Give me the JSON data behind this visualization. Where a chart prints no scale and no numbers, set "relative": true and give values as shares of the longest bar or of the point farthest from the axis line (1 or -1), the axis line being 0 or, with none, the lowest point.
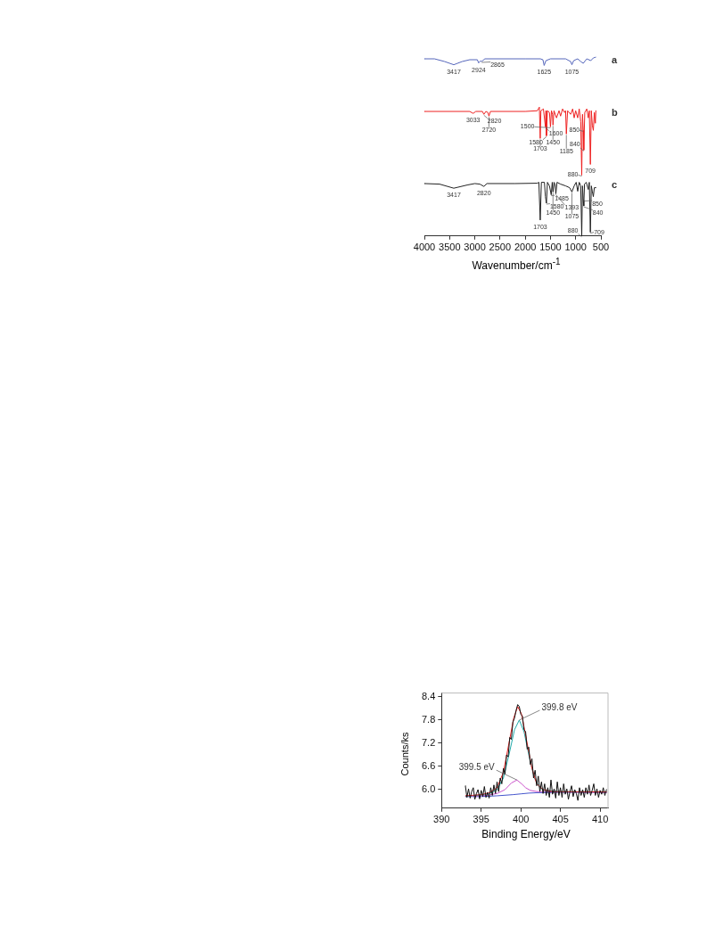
{
  "chart_data": [
    {
      "type": "line",
      "relative": true,
      "xlabel": "Wavenumber/cm$^{-1}$",
      "xlim": [
        4000,
        500
      ],
      "xticks": [
        4000,
        3500,
        3000,
        2500,
        2000,
        1500,
        1000,
        500
      ],
      "grid": false,
      "marker": "none",
      "series": [
        {
          "name": "a",
          "color": "#5566bb",
          "x": [
            4000,
            3800,
            3600,
            3417,
            3250,
            3100,
            2950,
            2924,
            2880,
            2865,
            2800,
            2000,
            1700,
            1650,
            1625,
            1590,
            1500,
            1200,
            1100,
            1075,
            1040,
            960,
            900,
            850,
            780,
            700,
            650,
            600
          ],
          "values": [
            0.99,
            0.99,
            0.975,
            0.957,
            0.975,
            0.985,
            0.985,
            0.967,
            0.98,
            0.975,
            0.99,
            0.99,
            0.99,
            0.985,
            0.953,
            0.98,
            0.99,
            0.99,
            0.975,
            0.957,
            0.98,
            0.99,
            0.975,
            0.965,
            0.99,
            0.98,
            0.995,
            1
          ]
        },
        {
          "name": "b",
          "color": "#ee2222",
          "x": [
            4000,
            3100,
            3033,
            2980,
            2850,
            2820,
            2780,
            2740,
            2720,
            2690,
            2000,
            1760,
            1720,
            1703,
            1690,
            1640,
            1600,
            1590,
            1580,
            1560,
            1520,
            1500,
            1480,
            1460,
            1450,
            1430,
            1380,
            1330,
            1300,
            1260,
            1220,
            1200,
            1185,
            1160,
            1100,
            1060,
            1030,
            1000,
            960,
            930,
            900,
            880,
            865,
            850,
            840,
            820,
            780,
            750,
            730,
            709,
            690,
            670,
            650,
            630,
            610,
            600
          ],
          "values": [
            0.696,
            0.696,
            0.685,
            0.696,
            0.696,
            0.68,
            0.696,
            0.69,
            0.67,
            0.696,
            0.696,
            0.7,
            0.72,
            0.545,
            0.7,
            0.71,
            0.61,
            0.7,
            0.56,
            0.7,
            0.69,
            0.61,
            0.7,
            0.68,
            0.62,
            0.7,
            0.66,
            0.7,
            0.67,
            0.71,
            0.69,
            0.7,
            0.57,
            0.7,
            0.68,
            0.71,
            0.66,
            0.7,
            0.66,
            0.71,
            0.64,
            0.34,
            0.68,
            0.59,
            0.48,
            0.69,
            0.71,
            0.66,
            0.7,
            0.4,
            0.7,
            0.62,
            0.59,
            0.69,
            0.63,
            0.7
          ]
        },
        {
          "name": "c",
          "color": "#222222",
          "x": [
            4000,
            3700,
            3417,
            3150,
            3000,
            2900,
            2820,
            2760,
            2200,
            1760,
            1730,
            1703,
            1680,
            1620,
            1600,
            1580,
            1560,
            1520,
            1485,
            1465,
            1450,
            1430,
            1410,
            1393,
            1370,
            1300,
            1200,
            1120,
            1075,
            1030,
            990,
            960,
            930,
            900,
            880,
            865,
            850,
            840,
            825,
            790,
            750,
            730,
            709,
            690,
            670,
            650,
            630,
            600
          ],
          "values": [
            0.293,
            0.29,
            0.267,
            0.285,
            0.293,
            0.29,
            0.277,
            0.293,
            0.293,
            0.295,
            0.3,
            0.089,
            0.3,
            0.3,
            0.22,
            0.183,
            0.3,
            0.28,
            0.23,
            0.3,
            0.246,
            0.3,
            0.29,
            0.236,
            0.3,
            0.29,
            0.28,
            0.27,
            0.246,
            0.28,
            0.3,
            0.25,
            0.3,
            0.28,
            0,
            0.28,
            0.2,
            0.168,
            0.29,
            0.3,
            0.26,
            0.3,
            0.021,
            0.28,
            0.25,
            0.22,
            0.27,
            0.27
          ]
        }
      ],
      "annotations": [
        {
          "text": "3417",
          "x": 3417,
          "y": 0.957
        },
        {
          "text": "2924",
          "x": 2924,
          "y": 0.967
        },
        {
          "text": "2865",
          "x": 2865,
          "y": 0.975
        },
        {
          "text": "1625",
          "x": 1625,
          "y": 0.953
        },
        {
          "text": "1075",
          "x": 1075,
          "y": 0.957
        },
        {
          "text": "3033",
          "x": 3033,
          "y": 0.685
        },
        {
          "text": "2820",
          "x": 2820,
          "y": 0.68
        },
        {
          "text": "2720",
          "x": 2720,
          "y": 0.67
        },
        {
          "text": "1600",
          "x": 1600,
          "y": 0.61
        },
        {
          "text": "1450",
          "x": 1450,
          "y": 0.62
        },
        {
          "text": "1500",
          "x": 1500,
          "y": 0.61
        },
        {
          "text": "1580",
          "x": 1580,
          "y": 0.56
        },
        {
          "text": "1703",
          "x": 1703,
          "y": 0.545
        },
        {
          "text": "1185",
          "x": 1185,
          "y": 0.57
        },
        {
          "text": "850",
          "x": 850,
          "y": 0.59
        },
        {
          "text": "840",
          "x": 840,
          "y": 0.48
        },
        {
          "text": "880",
          "x": 880,
          "y": 0.34
        },
        {
          "text": "709",
          "x": 709,
          "y": 0.4
        },
        {
          "text": "3417",
          "x": 3417,
          "y": 0.267
        },
        {
          "text": "2820",
          "x": 2820,
          "y": 0.277
        },
        {
          "text": "1485",
          "x": 1485,
          "y": 0.23
        },
        {
          "text": "1580",
          "x": 1580,
          "y": 0.183
        },
        {
          "text": "1450",
          "x": 1450,
          "y": 0.246
        },
        {
          "text": "1393",
          "x": 1393,
          "y": 0.236
        },
        {
          "text": "1075",
          "x": 1075,
          "y": 0.246
        },
        {
          "text": "850",
          "x": 850,
          "y": 0.2
        },
        {
          "text": "840",
          "x": 840,
          "y": 0.168
        },
        {
          "text": "1703",
          "x": 1703,
          "y": 0.089
        },
        {
          "text": "880",
          "x": 880,
          "y": 0
        },
        {
          "text": "709",
          "x": 709,
          "y": 0.021
        }
      ]
    },
    {
      "type": "line",
      "xlabel": "Binding Energy/eV",
      "ylabel": "Counts/ks",
      "xlim": [
        390,
        411
      ],
      "xticks": [
        390,
        395,
        400,
        405,
        410
      ],
      "ylim": [
        5.52,
        8.5
      ],
      "yticks": [
        {
          "value": 6,
          "label": "6.0"
        },
        6.6,
        7.2,
        7.8,
        8.4
      ],
      "grid": false,
      "marker": "none",
      "series": [
        {
          "color": "#111111",
          "x": [
            393.0,
            393.2,
            393.4,
            393.6,
            393.8,
            394.0,
            394.2,
            394.4,
            394.6,
            394.8,
            395.0,
            395.2,
            395.4,
            395.6,
            395.8,
            396.0,
            396.2,
            396.4,
            396.6,
            396.8,
            397.0,
            397.2,
            397.4,
            397.6,
            397.8,
            398.0,
            398.2,
            398.4,
            398.6,
            398.8,
            399.0,
            399.2,
            399.4,
            399.6,
            399.8,
            400.0,
            400.2,
            400.4,
            400.6,
            400.8,
            401.0,
            401.2,
            401.4,
            401.6,
            401.8,
            402.0,
            402.2,
            402.4,
            402.6,
            402.8,
            403.0,
            403.2,
            403.4,
            403.6,
            403.8,
            404.0,
            404.2,
            404.4,
            404.6,
            404.8,
            405.0,
            405.2,
            405.4,
            405.6,
            405.8,
            406.0,
            406.2,
            406.4,
            406.6,
            406.8,
            407.0,
            407.2,
            407.4,
            407.6,
            407.8,
            408.0,
            408.2,
            408.4,
            408.6,
            408.8,
            409.0,
            409.2,
            409.4,
            409.6,
            409.8,
            410.0,
            410.2,
            410.4,
            410.6,
            410.8
          ],
          "values": [
            6.1,
            5.8,
            6.02,
            5.78,
            5.95,
            6.05,
            5.75,
            5.9,
            6.0,
            5.76,
            5.98,
            5.82,
            6.08,
            5.8,
            5.93,
            5.78,
            6.05,
            5.85,
            6.12,
            5.9,
            6.2,
            5.95,
            6.3,
            6.15,
            6.55,
            6.4,
            6.9,
            6.85,
            7.35,
            7.3,
            7.75,
            7.85,
            8.05,
            8.2,
            8.15,
            7.95,
            7.9,
            7.55,
            7.5,
            7.05,
            7.1,
            6.65,
            6.8,
            6.3,
            6.5,
            6.1,
            6.35,
            5.95,
            6.2,
            5.9,
            6.15,
            5.85,
            6.05,
            5.8,
            6.25,
            5.88,
            6.02,
            5.78,
            6.2,
            5.85,
            6.05,
            5.8,
            6.15,
            5.88,
            6.02,
            5.75,
            5.95,
            6.1,
            5.82,
            6.0,
            5.9,
            5.72,
            6.05,
            5.85,
            6.0,
            5.8,
            6.05,
            5.88,
            6.12,
            5.85,
            5.98,
            6.15,
            5.85,
            6.02,
            5.8,
            5.98,
            5.88,
            6.05,
            5.85,
            6.0
          ]
        },
        {
          "color": "#ee2222",
          "x": [
            393,
            395,
            396,
            397,
            397.8,
            398.5,
            399.1,
            399.6,
            400.1,
            400.7,
            401.4,
            402,
            402.8,
            404,
            410.8
          ],
          "values": [
            5.84,
            5.87,
            5.92,
            6.05,
            6.45,
            7.2,
            7.85,
            8.15,
            7.95,
            7.3,
            6.55,
            6.15,
            6.0,
            5.95,
            5.94
          ]
        },
        {
          "color": "#22aaaa",
          "x": [
            393,
            395,
            396,
            397,
            397.8,
            398.5,
            399.2,
            399.8,
            400.4,
            401,
            401.7,
            402.4,
            403,
            405,
            410.8
          ],
          "values": [
            5.83,
            5.86,
            5.9,
            6.0,
            6.3,
            6.9,
            7.55,
            7.8,
            7.5,
            6.9,
            6.3,
            6.05,
            5.98,
            5.95,
            5.94
          ]
        },
        {
          "color": "#cc55cc",
          "x": [
            393,
            395,
            396,
            397,
            398,
            398.8,
            399.5,
            400.1,
            400.6,
            401.2,
            402,
            404,
            410.8
          ],
          "values": [
            5.83,
            5.84,
            5.86,
            5.9,
            6.0,
            6.17,
            6.25,
            6.15,
            6.05,
            5.98,
            5.95,
            5.94,
            5.93
          ]
        },
        {
          "color": "#4455cc",
          "x": [
            393,
            395,
            397,
            399,
            400,
            401,
            402,
            405,
            410.8
          ],
          "values": [
            5.82,
            5.82,
            5.84,
            5.87,
            5.89,
            5.91,
            5.92,
            5.93,
            5.93
          ]
        }
      ],
      "annotations": [
        {
          "text": "399.8 eV",
          "x": 399.8,
          "y": 7.8
        },
        {
          "text": "399.5 eV",
          "x": 399.5,
          "y": 6.25
        }
      ]
    }
  ]
}
